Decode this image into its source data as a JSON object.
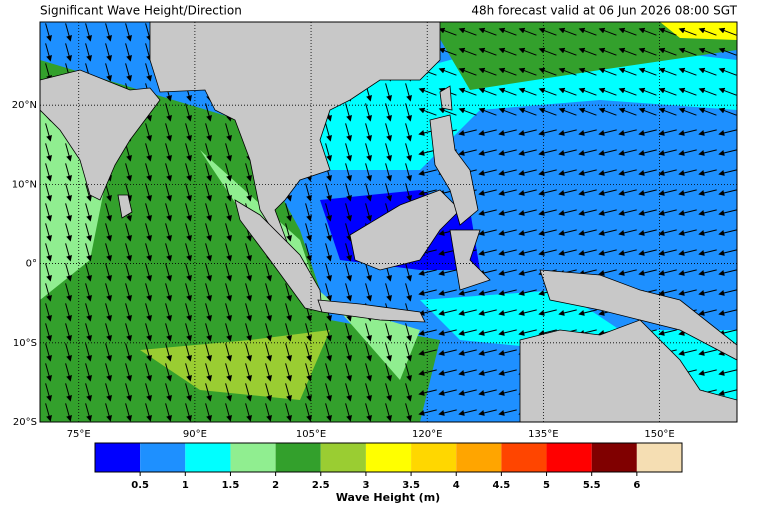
{
  "map": {
    "title": "Significant Wave Height/Direction",
    "valid": "48h forecast valid at 06 Jun 2026 08:00 SGT",
    "lonlim": [
      70,
      160
    ],
    "latlim": [
      -20,
      30.5
    ],
    "lat_ticks": [
      {
        "value": 20,
        "label": "20°N"
      },
      {
        "value": 10,
        "label": "10°N"
      },
      {
        "value": 0,
        "label": "0°"
      },
      {
        "value": -10,
        "label": "10°S"
      },
      {
        "value": -20,
        "label": "20°S"
      }
    ],
    "lon_ticks": [
      {
        "value": 75,
        "label": "75°E"
      },
      {
        "value": 90,
        "label": "90°E"
      },
      {
        "value": 105,
        "label": "105°E"
      },
      {
        "value": 120,
        "label": "120°E"
      },
      {
        "value": 135,
        "label": "135°E"
      },
      {
        "value": 150,
        "label": "150°E"
      }
    ]
  },
  "colorbar": {
    "title": "Wave Height (m)",
    "lim": [
      0,
      6.5
    ],
    "ticks": [
      0.5,
      1,
      1.5,
      2,
      2.5,
      3,
      3.5,
      4,
      4.5,
      5,
      5.5,
      6
    ],
    "colors": [
      "#0000ff",
      "#1e90ff",
      "#00ffff",
      "#90ee90",
      "#33a02c",
      "#9acd32",
      "#ffff00",
      "#ffd700",
      "#ffa500",
      "#ff4500",
      "#ff0000",
      "#800000",
      "#f5deb3"
    ]
  }
}
